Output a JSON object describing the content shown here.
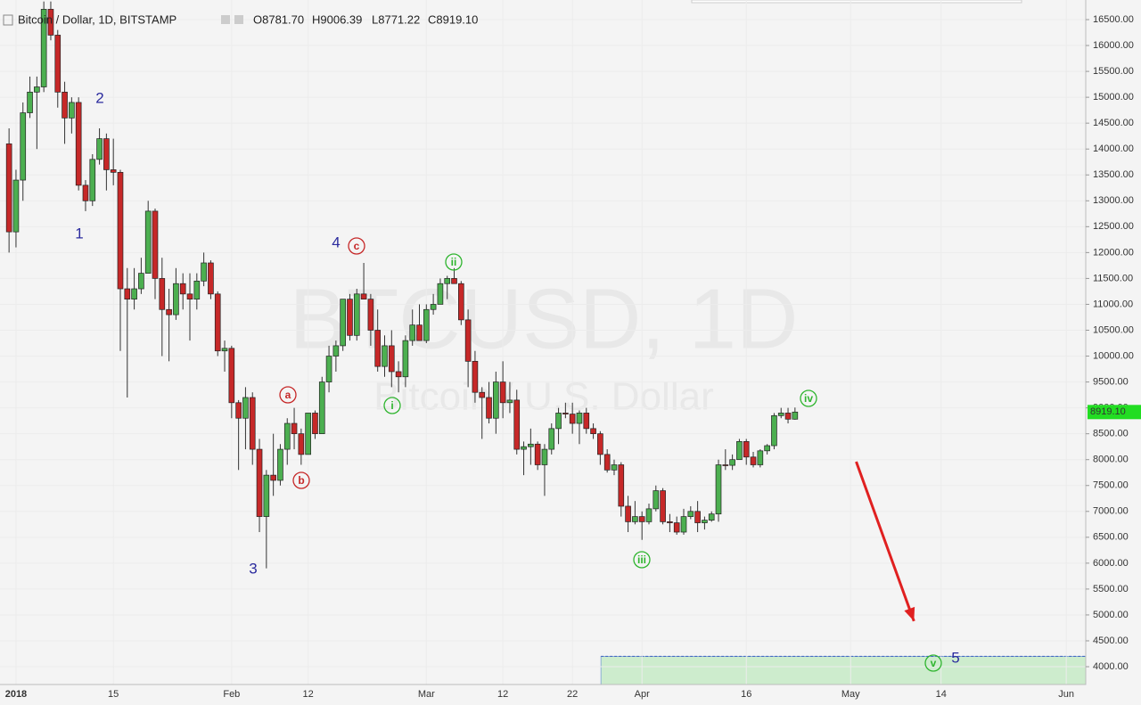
{
  "chart_data": {
    "type": "candlestick",
    "title": "Bitcoin / Dollar, 1D, BITSTAMP",
    "ohlc_labels": [
      "O8781.70",
      "H9006.39",
      "L8771.22",
      "C8919.10"
    ],
    "watermark": "BTCUSD, 1D",
    "watermark_subtitle": "Bitcoin / U.S. Dollar",
    "last_price_label": "8919.10",
    "up_color": "#4caf50",
    "down_color": "#c62828",
    "x": [
      -1,
      0,
      1,
      2,
      3,
      4,
      5,
      6,
      7,
      8,
      9,
      10,
      11,
      12,
      13,
      14,
      15,
      16,
      17,
      18,
      19,
      20,
      21,
      22,
      23,
      24,
      25,
      26,
      27,
      28,
      29,
      30,
      31,
      32,
      33,
      34,
      35,
      36,
      37,
      38,
      39,
      40,
      41,
      42,
      43,
      44,
      45,
      46,
      47,
      48,
      49,
      50,
      51,
      52,
      53,
      54,
      55,
      56,
      57,
      58,
      59,
      60,
      61,
      62,
      63,
      64,
      65,
      66,
      67,
      68,
      69,
      70,
      71,
      72,
      73,
      74,
      75,
      76,
      77,
      78,
      79,
      80,
      81,
      82,
      83,
      84,
      85,
      86,
      87,
      88,
      89,
      90,
      91,
      92,
      93,
      94,
      95,
      96,
      97,
      98,
      99,
      100,
      101,
      102,
      103,
      104,
      105,
      106,
      107,
      108,
      109,
      110,
      111,
      112
    ],
    "open": [
      14100,
      12400,
      13400,
      14700,
      15100,
      15200,
      16700,
      16200,
      15100,
      14600,
      14900,
      13300,
      13000,
      13800,
      14200,
      13600,
      13550,
      11300,
      11100,
      11300,
      11600,
      12800,
      11500,
      10900,
      10800,
      11400,
      11200,
      11100,
      11450,
      11800,
      11200,
      10100,
      10150,
      9100,
      8800,
      9200,
      8200,
      6900,
      7700,
      7600,
      8200,
      8700,
      8500,
      8100,
      8900,
      8500,
      9500,
      10000,
      10200,
      11100,
      10400,
      11200,
      11100,
      10500,
      9800,
      10200,
      9700,
      9600,
      10300,
      10600,
      10300,
      10900,
      11000,
      11400,
      11500,
      11400,
      10700,
      9900,
      9300,
      9200,
      8800,
      9500,
      9100,
      9150,
      8200,
      8250,
      8300,
      7900,
      8200,
      8600,
      8900,
      8880,
      8700,
      8900,
      8600,
      8500,
      8100,
      7800,
      7900,
      7100,
      6800,
      6900,
      6800,
      7050,
      7400,
      6800,
      6780,
      6600,
      6900,
      7000,
      6780,
      6830,
      6950,
      7900,
      7890,
      8000,
      8350,
      8050,
      7900,
      8170,
      8270,
      8850,
      8900,
      8781.7
    ],
    "high": [
      14400,
      13600,
      14900,
      15400,
      15400,
      16850,
      16850,
      16300,
      15300,
      15000,
      15000,
      13400,
      13900,
      14400,
      14300,
      14200,
      13600,
      11700,
      11700,
      11900,
      13000,
      12850,
      11900,
      11300,
      11700,
      11600,
      11600,
      11600,
      12000,
      11850,
      11250,
      10300,
      10200,
      9150,
      9400,
      9300,
      8400,
      7800,
      8500,
      8300,
      8800,
      9000,
      8600,
      8900,
      8950,
      9600,
      10200,
      10300,
      11100,
      11200,
      11300,
      11800,
      11200,
      10900,
      10400,
      10500,
      9900,
      10400,
      10900,
      11000,
      11000,
      11200,
      11500,
      11550,
      11700,
      11450,
      10900,
      10100,
      9400,
      9500,
      9700,
      9900,
      9500,
      9350,
      8350,
      8600,
      8350,
      8300,
      8700,
      9000,
      9100,
      9100,
      8950,
      9000,
      8700,
      8550,
      8200,
      8000,
      7950,
      7300,
      7200,
      7000,
      7150,
      7500,
      7450,
      6950,
      6900,
      7050,
      7100,
      7200,
      6900,
      7000,
      8000,
      8200,
      8100,
      8400,
      8400,
      8150,
      8200,
      8300,
      8900,
      9000,
      9000,
      9006.39
    ],
    "low": [
      12000,
      12100,
      13000,
      14600,
      14000,
      15100,
      16100,
      14800,
      14100,
      14300,
      13200,
      12800,
      12900,
      13700,
      13200,
      13300,
      10100,
      9200,
      10900,
      11200,
      11600,
      11100,
      10000,
      9900,
      10700,
      10900,
      10300,
      10900,
      11350,
      11100,
      10000,
      9700,
      8800,
      7800,
      8200,
      7900,
      6600,
      5900,
      7300,
      7500,
      7900,
      8200,
      7900,
      8100,
      8400,
      8500,
      9300,
      9700,
      10100,
      10300,
      10300,
      11100,
      10200,
      9700,
      9600,
      9400,
      9300,
      9400,
      10200,
      10300,
      10250,
      10800,
      11000,
      11100,
      11400,
      10600,
      9400,
      9100,
      8400,
      8700,
      8500,
      8800,
      8900,
      8100,
      7700,
      7900,
      7800,
      7300,
      8100,
      8300,
      8800,
      8500,
      8300,
      8500,
      8400,
      7900,
      7750,
      7700,
      6900,
      6600,
      6750,
      6450,
      6750,
      7000,
      6750,
      6600,
      6550,
      6550,
      6850,
      6600,
      6650,
      6800,
      6800,
      7800,
      7800,
      8000,
      7900,
      7850,
      7850,
      8100,
      8200,
      8800,
      8700,
      8771.22
    ],
    "close": [
      12400,
      13400,
      14700,
      15100,
      15200,
      16700,
      16200,
      15100,
      14600,
      14900,
      13300,
      13000,
      13800,
      14200,
      13600,
      13550,
      11300,
      11100,
      11300,
      11600,
      12800,
      11500,
      10900,
      10800,
      11400,
      11200,
      11100,
      11450,
      11800,
      11200,
      10100,
      10150,
      9100,
      8800,
      9200,
      8200,
      6900,
      7700,
      7600,
      8200,
      8700,
      8500,
      8100,
      8900,
      8500,
      9500,
      10000,
      10200,
      11100,
      10400,
      11200,
      11100,
      10500,
      9800,
      10200,
      9700,
      9600,
      10300,
      10600,
      10300,
      10900,
      11000,
      11400,
      11500,
      11400,
      10700,
      9900,
      9300,
      9200,
      8800,
      9500,
      9100,
      9150,
      8200,
      8250,
      8300,
      7900,
      8200,
      8600,
      8900,
      8880,
      8700,
      8900,
      8600,
      8500,
      8100,
      7800,
      7900,
      7100,
      6800,
      6900,
      6800,
      7050,
      7400,
      6800,
      6780,
      6600,
      6900,
      7000,
      6780,
      6830,
      6950,
      7900,
      7890,
      8000,
      8350,
      8050,
      7900,
      8170,
      8270,
      8850,
      8900,
      8781.7,
      8919.1
    ],
    "xlim": [
      -2.3,
      153.8
    ],
    "ylim": [
      3656,
      16879
    ],
    "xticks": [
      {
        "value": 0,
        "label": "2018"
      },
      {
        "value": 14,
        "label": "15"
      },
      {
        "value": 31,
        "label": "Feb"
      },
      {
        "value": 42,
        "label": "12"
      },
      {
        "value": 59,
        "label": "Mar"
      },
      {
        "value": 70,
        "label": "12"
      },
      {
        "value": 80,
        "label": "22"
      },
      {
        "value": 90,
        "label": "Apr"
      },
      {
        "value": 105,
        "label": "16"
      },
      {
        "value": 120,
        "label": "May"
      },
      {
        "value": 133,
        "label": "14"
      },
      {
        "value": 151,
        "label": "Jun"
      }
    ],
    "yticks": [
      {
        "value": 4000,
        "label": "4000.00"
      },
      {
        "value": 4500,
        "label": "4500.00"
      },
      {
        "value": 5000,
        "label": "5000.00"
      },
      {
        "value": 5500,
        "label": "5500.00"
      },
      {
        "value": 6000,
        "label": "6000.00"
      },
      {
        "value": 6500,
        "label": "6500.00"
      },
      {
        "value": 7000,
        "label": "7000.00"
      },
      {
        "value": 7500,
        "label": "7500.00"
      },
      {
        "value": 8000,
        "label": "8000.00"
      },
      {
        "value": 8500,
        "label": "8500.00"
      },
      {
        "value": 9000,
        "label": "9000.00"
      },
      {
        "value": 9500,
        "label": "9500.00"
      },
      {
        "value": 10000,
        "label": "10000.00"
      },
      {
        "value": 10500,
        "label": "10500.00"
      },
      {
        "value": 11000,
        "label": "11000.00"
      },
      {
        "value": 11500,
        "label": "11500.00"
      },
      {
        "value": 12000,
        "label": "12000.00"
      },
      {
        "value": 12500,
        "label": "12500.00"
      },
      {
        "value": 13000,
        "label": "13000.00"
      },
      {
        "value": 13500,
        "label": "13500.00"
      },
      {
        "value": 14000,
        "label": "14000.00"
      },
      {
        "value": 14500,
        "label": "14500.00"
      },
      {
        "value": 15000,
        "label": "15000.00"
      },
      {
        "value": 15500,
        "label": "15500.00"
      },
      {
        "value": 16000,
        "label": "16000.00"
      },
      {
        "value": 16500,
        "label": "16500.00"
      }
    ],
    "grid": true,
    "zone": {
      "x_start": 84.1,
      "low": 3656,
      "high": 4200,
      "color": "#cdeccd"
    },
    "arrow": {
      "x": [
        120.8,
        129.1
      ],
      "y": [
        7960,
        4880
      ],
      "color": "#e02020"
    },
    "annotations": [
      {
        "text": "1",
        "color": "#2b2b9e",
        "circled": false
      },
      {
        "text": "2",
        "color": "#2b2b9e",
        "circled": false
      },
      {
        "text": "3",
        "color": "#2b2b9e",
        "circled": false
      },
      {
        "text": "4",
        "color": "#2b2b9e",
        "circled": false
      },
      {
        "text": "5",
        "color": "#2b2b9e",
        "circled": false
      },
      {
        "text": "a",
        "color": "#c62828",
        "circled": true
      },
      {
        "text": "b",
        "color": "#c62828",
        "circled": true
      },
      {
        "text": "c",
        "color": "#c62828",
        "circled": true
      },
      {
        "text": "i",
        "color": "#2fb52f",
        "circled": true
      },
      {
        "text": "ii",
        "color": "#2fb52f",
        "circled": true
      },
      {
        "text": "iii",
        "color": "#2fb52f",
        "circled": true
      },
      {
        "text": "iv",
        "color": "#2fb52f",
        "circled": true
      },
      {
        "text": "v",
        "color": "#2fb52f",
        "circled": true
      }
    ]
  }
}
